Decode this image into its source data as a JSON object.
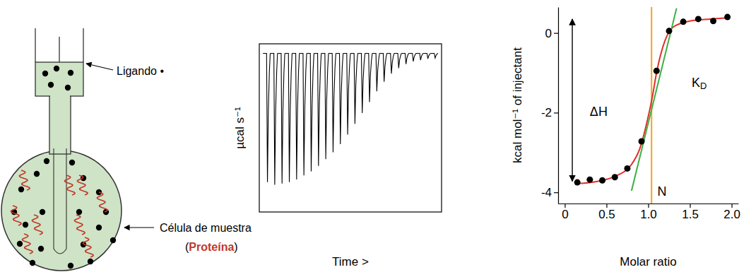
{
  "diagram": {
    "ligand_label": "Ligando •",
    "cell_label": "Célula de muestra",
    "cell_content": {
      "open": "(",
      "text": "Proteína",
      "close": ")",
      "color": "#c0392b"
    }
  },
  "chart_data": [
    {
      "type": "line",
      "y_label": "µcal s⁻¹",
      "x_label": "Time >",
      "x": [
        1,
        2,
        3,
        4,
        5,
        6,
        7,
        8,
        9,
        10,
        11,
        12,
        13,
        14,
        15,
        16,
        17,
        18,
        19,
        20,
        21,
        22,
        23,
        24
      ],
      "values": [
        -0.95,
        -0.97,
        -0.96,
        -0.95,
        -0.93,
        -0.9,
        -0.87,
        -0.83,
        -0.78,
        -0.73,
        -0.67,
        -0.6,
        -0.52,
        -0.44,
        -0.36,
        -0.28,
        -0.21,
        -0.15,
        -0.11,
        -0.08,
        -0.06,
        -0.05,
        -0.04,
        -0.035
      ],
      "color": "#000000",
      "xlim": [
        0,
        25
      ],
      "ylim": [
        -1.17,
        0.07
      ],
      "tick_labels": false
    },
    {
      "type": "scatter",
      "y_label": "kcal mol⁻¹ of injectant",
      "x_label": "Molar ratio",
      "xlim": [
        -0.08,
        2.08
      ],
      "ylim": [
        -4.28,
        0.65
      ],
      "xticks": [
        0,
        0.5,
        {
          "value": 1,
          "label": "1.0"
        },
        1.5,
        {
          "value": 2,
          "label": "2.0"
        }
      ],
      "yticks": [
        -4,
        -2,
        0
      ],
      "series": [
        {
          "type": "scatter",
          "marker": "circle",
          "color": "#000000",
          "x": [
            0.15,
            0.3,
            0.45,
            0.6,
            0.75,
            0.92,
            1.1,
            1.25,
            1.42,
            1.6,
            1.78,
            1.95
          ],
          "values": [
            -3.75,
            -3.68,
            -3.7,
            -3.62,
            -3.4,
            -2.72,
            -0.95,
            0.05,
            0.28,
            0.35,
            0.3,
            0.4
          ]
        },
        {
          "type": "line",
          "line_style": "solid",
          "color": "#e0302a",
          "x": [
            0.15,
            0.4,
            0.6,
            0.8,
            0.9,
            1.0,
            1.05,
            1.1,
            1.2,
            1.3,
            1.5,
            1.75,
            1.95
          ],
          "values": [
            -3.78,
            -3.72,
            -3.6,
            -3.3,
            -2.9,
            -2.1,
            -1.6,
            -1.0,
            -0.2,
            0.15,
            0.3,
            0.35,
            0.38
          ]
        },
        {
          "type": "line",
          "line_style": "solid",
          "color": "#3cb043",
          "x": [
            0.8,
            1.34
          ],
          "values": [
            -3.96,
            0.62
          ]
        }
      ],
      "reference_lines": [
        {
          "x": 1.04,
          "color": "#f5a31a"
        }
      ],
      "annotations": [
        {
          "text": "ΔH",
          "x": 0.3,
          "y": -2.0
        },
        {
          "text": "K",
          "subscript": "D",
          "x": 1.52,
          "y": -1.26
        },
        {
          "text": "N",
          "x": 1.11,
          "y": -4.0
        }
      ],
      "arrows": [
        {
          "x": 0.09,
          "from": 0.35,
          "to": -3.72
        }
      ]
    }
  ]
}
